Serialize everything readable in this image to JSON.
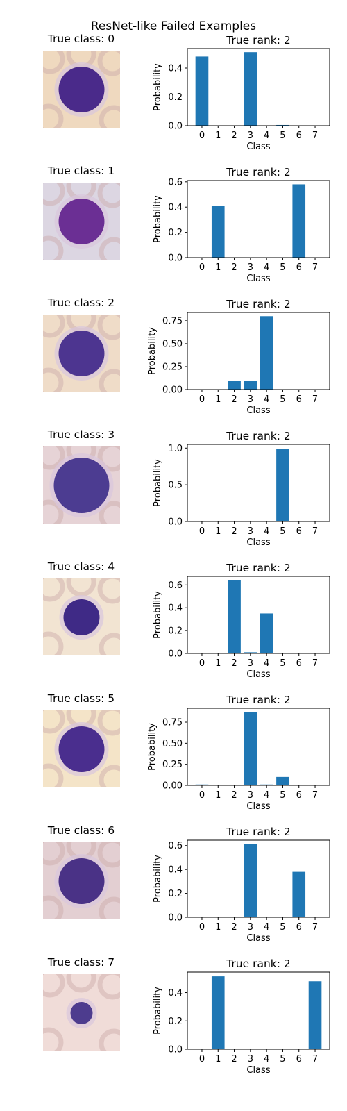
{
  "figure_title": "ResNet-like Failed Examples",
  "rows": [
    {
      "image_title": "True class: 0",
      "image_icon": "cell-image",
      "image_bg": "#efd9bf",
      "cell_color": "#4a2a8a",
      "cell_size": "large"
    },
    {
      "image_title": "True class: 1",
      "image_icon": "cell-image",
      "image_bg": "#dcd6e2",
      "cell_color": "#6b2f94",
      "cell_size": "large"
    },
    {
      "image_title": "True class: 2",
      "image_icon": "cell-image",
      "image_bg": "#efdcc8",
      "cell_color": "#4d3590",
      "cell_size": "large"
    },
    {
      "image_title": "True class: 3",
      "image_icon": "cell-image",
      "image_bg": "#e6d3d6",
      "cell_color": "#4c3c91",
      "cell_size": "xlarge"
    },
    {
      "image_title": "True class: 4",
      "image_icon": "cell-image",
      "image_bg": "#f2e4d2",
      "cell_color": "#3f2a86",
      "cell_size": "small"
    },
    {
      "image_title": "True class: 5",
      "image_icon": "cell-image",
      "image_bg": "#f4e4c8",
      "cell_color": "#4a2e8e",
      "cell_size": "large"
    },
    {
      "image_title": "True class: 6",
      "image_icon": "cell-image",
      "image_bg": "#e3cfd2",
      "cell_color": "#4a3286",
      "cell_size": "large"
    },
    {
      "image_title": "True class: 7",
      "image_icon": "cell-image",
      "image_bg": "#f0dcd8",
      "cell_color": "#4d3c8e",
      "cell_size": "tiny"
    }
  ],
  "chart_data": [
    {
      "type": "bar",
      "title": "True rank: 2",
      "xlabel": "Class",
      "ylabel": "Probability",
      "categories": [
        "0",
        "1",
        "2",
        "3",
        "4",
        "5",
        "6",
        "7"
      ],
      "values": [
        0.48,
        0,
        0,
        0.51,
        0,
        0.005,
        0,
        0
      ],
      "ylim": [
        0,
        0.535
      ],
      "yticks": [
        0.0,
        0.2,
        0.4
      ],
      "ytick_labels": [
        "0.0",
        "0.2",
        "0.4"
      ],
      "bar_color": "#1f77b4"
    },
    {
      "type": "bar",
      "title": "True rank: 2",
      "xlabel": "Class",
      "ylabel": "Probability",
      "categories": [
        "0",
        "1",
        "2",
        "3",
        "4",
        "5",
        "6",
        "7"
      ],
      "values": [
        0,
        0.41,
        0,
        0,
        0,
        0,
        0.58,
        0
      ],
      "ylim": [
        0,
        0.61
      ],
      "yticks": [
        0.0,
        0.2,
        0.4,
        0.6
      ],
      "ytick_labels": [
        "0.0",
        "0.2",
        "0.4",
        "0.6"
      ],
      "bar_color": "#1f77b4"
    },
    {
      "type": "bar",
      "title": "True rank: 2",
      "xlabel": "Class",
      "ylabel": "Probability",
      "categories": [
        "0",
        "1",
        "2",
        "3",
        "4",
        "5",
        "6",
        "7"
      ],
      "values": [
        0,
        0,
        0.095,
        0.095,
        0.8,
        0,
        0,
        0
      ],
      "ylim": [
        0,
        0.84
      ],
      "yticks": [
        0.0,
        0.25,
        0.5,
        0.75
      ],
      "ytick_labels": [
        "0.00",
        "0.25",
        "0.50",
        "0.75"
      ],
      "bar_color": "#1f77b4"
    },
    {
      "type": "bar",
      "title": "True rank: 2",
      "xlabel": "Class",
      "ylabel": "Probability",
      "categories": [
        "0",
        "1",
        "2",
        "3",
        "4",
        "5",
        "6",
        "7"
      ],
      "values": [
        0,
        0,
        0,
        0,
        0,
        0.99,
        0,
        0
      ],
      "ylim": [
        0,
        1.05
      ],
      "yticks": [
        0.0,
        0.5,
        1.0
      ],
      "ytick_labels": [
        "0.0",
        "0.5",
        "1.0"
      ],
      "bar_color": "#1f77b4"
    },
    {
      "type": "bar",
      "title": "True rank: 2",
      "xlabel": "Class",
      "ylabel": "Probability",
      "categories": [
        "0",
        "1",
        "2",
        "3",
        "4",
        "5",
        "6",
        "7"
      ],
      "values": [
        0,
        0,
        0.64,
        0.01,
        0.35,
        0,
        0,
        0
      ],
      "ylim": [
        0,
        0.675
      ],
      "yticks": [
        0.0,
        0.2,
        0.4,
        0.6
      ],
      "ytick_labels": [
        "0.0",
        "0.2",
        "0.4",
        "0.6"
      ],
      "bar_color": "#1f77b4"
    },
    {
      "type": "bar",
      "title": "True rank: 2",
      "xlabel": "Class",
      "ylabel": "Probability",
      "categories": [
        "0",
        "1",
        "2",
        "3",
        "4",
        "5",
        "6",
        "7"
      ],
      "values": [
        0.01,
        0,
        0,
        0.87,
        0.01,
        0.1,
        0,
        0
      ],
      "ylim": [
        0,
        0.915
      ],
      "yticks": [
        0.0,
        0.25,
        0.5,
        0.75
      ],
      "ytick_labels": [
        "0.00",
        "0.25",
        "0.50",
        "0.75"
      ],
      "bar_color": "#1f77b4"
    },
    {
      "type": "bar",
      "title": "True rank: 2",
      "xlabel": "Class",
      "ylabel": "Probability",
      "categories": [
        "0",
        "1",
        "2",
        "3",
        "4",
        "5",
        "6",
        "7"
      ],
      "values": [
        0,
        0,
        0,
        0.615,
        0,
        0,
        0.38,
        0
      ],
      "ylim": [
        0,
        0.645
      ],
      "yticks": [
        0.0,
        0.2,
        0.4,
        0.6
      ],
      "ytick_labels": [
        "0.0",
        "0.2",
        "0.4",
        "0.6"
      ],
      "bar_color": "#1f77b4"
    },
    {
      "type": "bar",
      "title": "True rank: 2",
      "xlabel": "Class",
      "ylabel": "Probability",
      "categories": [
        "0",
        "1",
        "2",
        "3",
        "4",
        "5",
        "6",
        "7"
      ],
      "values": [
        0,
        0.515,
        0,
        0,
        0,
        0,
        0,
        0.48
      ],
      "ylim": [
        0,
        0.545
      ],
      "yticks": [
        0.0,
        0.2,
        0.4
      ],
      "ytick_labels": [
        "0.0",
        "0.2",
        "0.4"
      ],
      "bar_color": "#1f77b4"
    }
  ]
}
